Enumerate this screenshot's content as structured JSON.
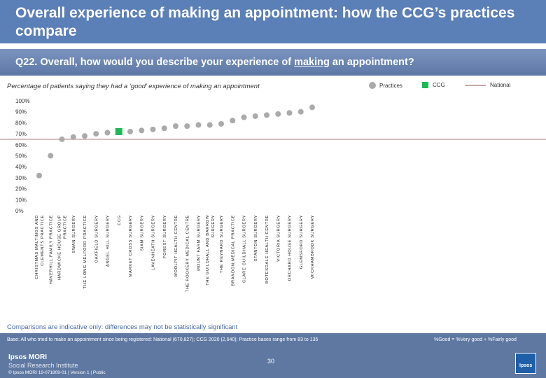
{
  "header": {
    "title": "Overall experience of making an appointment: how the CCG’s practices compare"
  },
  "question": {
    "prefix": "Q22. Overall, how would you describe your experience of ",
    "underlined": "making",
    "suffix": " an appointment?"
  },
  "caption": "Percentage of patients saying they had a ‘good’ experience of making an appointment",
  "legend": {
    "practices": "Practices",
    "ccg": "CCG",
    "national": "National"
  },
  "colors": {
    "practices": "#aaaaaa",
    "ccg": "#1db954",
    "national": "#c8a8a8",
    "header": "#5b7fb7"
  },
  "chart_data": {
    "type": "scatter",
    "title": "Percentage of patients saying they had a ‘good’ experience of making an appointment",
    "ylim": [
      0,
      100
    ],
    "y_ticks": [
      "0%",
      "10%",
      "20%",
      "30%",
      "40%",
      "50%",
      "60%",
      "70%",
      "80%",
      "90%",
      "100%"
    ],
    "national": 65,
    "categories": [
      "CHRISTMAS MALTINGS AND CLEMENTS PRACTICE",
      "HAVERHILL FAMILY PRACTICE",
      "HARDWICKE HOUSE GROUP PRACTICE",
      "SWAN SURGERY",
      "THE LONG MELFORD PRACTICE",
      "OAKFIELD SURGERY",
      "ANGEL HILL SURGERY",
      "CCG",
      "MARKET CROSS SURGERY",
      "SIAM SURGERY",
      "LAVENHEATH SURGERY",
      "FOREST SURGERY",
      "WOOLPIT HEALTH CENTRE",
      "THE ROOKERY MEDICAL CENTRE",
      "MOUNT FARM SURGERY",
      "THE GUILDHALL AND BARROW SURGERY",
      "THE REYNARD SURGERY",
      "BRANDON MEDICAL PRACTICE",
      "CLARE GUILDHALL SURGERY",
      "STANTON SURGERY",
      "BOTESDALE HEALTH CENTRE",
      "VICTORIA SURGERY",
      "ORCHARD HOUSE SURGERY",
      "GLEMSFORD SURGERY",
      "WICKHAMBROOK SURGERY"
    ],
    "values": [
      32,
      50,
      65,
      67,
      68,
      70,
      71,
      72,
      72,
      73,
      74,
      75,
      77,
      77,
      78,
      78,
      79,
      82,
      85,
      86,
      87,
      88,
      89,
      90,
      94
    ]
  },
  "note": "Comparisons are indicative only: differences may not be statistically significant",
  "footer": {
    "base": "Base: All who tried to make an appointment since being registered: National (670,827); CCG 2020 (2,640); Practice bases range from 83 to 135",
    "good_note": "%Good = %Very good + %Fairly good",
    "logo_line1": "Ipsos MORI",
    "logo_line2": "Social Research Institute",
    "copyright": "© Ipsos MORI     19-071809-01 | Version 1 | Public",
    "page_number": "30",
    "logo_badge": "Ipsos"
  }
}
